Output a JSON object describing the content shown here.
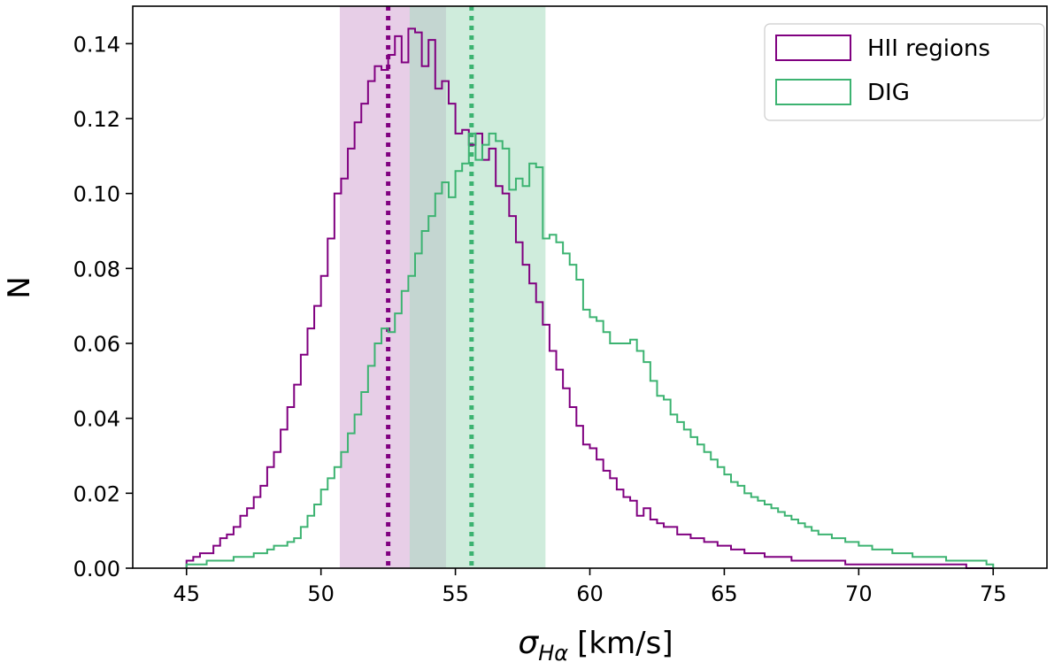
{
  "chart_data": {
    "type": "histogram",
    "xlabel": "σ_Hα [km/s]",
    "xlabel_symbol": "σ",
    "xlabel_sub": "Hα",
    "xlabel_units": "[km/s]",
    "ylabel": "N",
    "xlim": [
      43,
      77
    ],
    "ylim": [
      0,
      0.15
    ],
    "xticks": [
      "45",
      "50",
      "55",
      "60",
      "65",
      "70",
      "75"
    ],
    "yticks": [
      "0.00",
      "0.02",
      "0.04",
      "0.06",
      "0.08",
      "0.10",
      "0.12",
      "0.14"
    ],
    "bin_start": 45,
    "bin_width": 0.25,
    "legend_position": "upper right",
    "series": [
      {
        "name": "HII regions",
        "color": "#800080",
        "shade_color": "#d4a5d4",
        "median": 52.5,
        "band": [
          50.7,
          54.65
        ],
        "values": [
          0.002,
          0.003,
          0.004,
          0.004,
          0.006,
          0.008,
          0.009,
          0.011,
          0.014,
          0.016,
          0.019,
          0.022,
          0.027,
          0.031,
          0.037,
          0.043,
          0.049,
          0.057,
          0.064,
          0.07,
          0.078,
          0.088,
          0.1,
          0.104,
          0.112,
          0.119,
          0.124,
          0.13,
          0.134,
          0.133,
          0.137,
          0.142,
          0.135,
          0.144,
          0.143,
          0.134,
          0.141,
          0.128,
          0.13,
          0.124,
          0.116,
          0.117,
          0.113,
          0.116,
          0.109,
          0.112,
          0.102,
          0.1,
          0.094,
          0.087,
          0.081,
          0.076,
          0.071,
          0.065,
          0.058,
          0.053,
          0.048,
          0.043,
          0.038,
          0.033,
          0.032,
          0.029,
          0.026,
          0.024,
          0.021,
          0.019,
          0.018,
          0.014,
          0.016,
          0.013,
          0.012,
          0.011,
          0.011,
          0.009,
          0.009,
          0.008,
          0.008,
          0.007,
          0.007,
          0.006,
          0.006,
          0.005,
          0.005,
          0.004,
          0.004,
          0.004,
          0.003,
          0.003,
          0.003,
          0.003,
          0.002,
          0.002,
          0.002,
          0.002,
          0.002,
          0.002,
          0.002,
          0.002,
          0.001,
          0.001,
          0.001,
          0.001,
          0.001,
          0.001,
          0.001,
          0.001,
          0.001,
          0.001,
          0.001,
          0.001,
          0.001,
          0.001,
          0.001,
          0.001,
          0.001,
          0.001,
          0,
          0,
          0,
          0
        ]
      },
      {
        "name": "DIG",
        "color": "#3cb371",
        "shade_color": "#a8dcc0",
        "median": 55.6,
        "band": [
          53.3,
          58.35
        ],
        "values": [
          0.001,
          0.001,
          0.001,
          0.002,
          0.002,
          0.002,
          0.002,
          0.003,
          0.003,
          0.003,
          0.004,
          0.004,
          0.005,
          0.006,
          0.006,
          0.007,
          0.008,
          0.011,
          0.014,
          0.017,
          0.021,
          0.024,
          0.027,
          0.031,
          0.036,
          0.041,
          0.047,
          0.054,
          0.06,
          0.064,
          0.063,
          0.068,
          0.074,
          0.078,
          0.084,
          0.09,
          0.094,
          0.1,
          0.103,
          0.099,
          0.106,
          0.108,
          0.116,
          0.109,
          0.113,
          0.116,
          0.114,
          0.112,
          0.101,
          0.104,
          0.102,
          0.108,
          0.107,
          0.088,
          0.089,
          0.087,
          0.084,
          0.081,
          0.077,
          0.069,
          0.067,
          0.066,
          0.063,
          0.06,
          0.06,
          0.06,
          0.061,
          0.058,
          0.055,
          0.05,
          0.046,
          0.045,
          0.041,
          0.039,
          0.037,
          0.035,
          0.033,
          0.031,
          0.029,
          0.027,
          0.025,
          0.023,
          0.022,
          0.02,
          0.019,
          0.018,
          0.017,
          0.016,
          0.015,
          0.014,
          0.013,
          0.012,
          0.011,
          0.01,
          0.009,
          0.009,
          0.008,
          0.008,
          0.007,
          0.007,
          0.006,
          0.006,
          0.005,
          0.005,
          0.005,
          0.004,
          0.004,
          0.004,
          0.003,
          0.003,
          0.003,
          0.003,
          0.003,
          0.002,
          0.002,
          0.002,
          0.002,
          0.002,
          0.002,
          0.001
        ]
      }
    ]
  }
}
